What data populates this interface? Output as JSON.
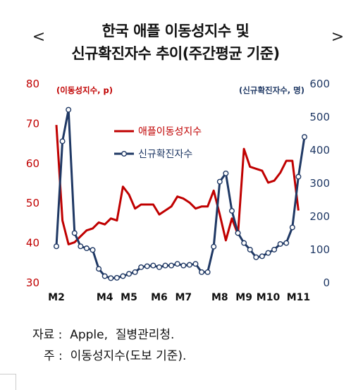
{
  "header": {
    "title_line1": "한국 애플 이동성지수 및",
    "title_line2": "신규확진자수 추이(주간평균 기준)",
    "prev_label": "<",
    "next_label": ">"
  },
  "footer": {
    "source": "자료 :  Apple,  질병관리청.",
    "note": "주 :  이동성지수(도보 기준)."
  },
  "colors": {
    "mobility": "#c00000",
    "cases": "#1f3864",
    "left_axis_text": "#c00000",
    "right_axis_text": "#1f3864"
  },
  "chart_data": {
    "type": "line",
    "left_axis_label": "(이동성지수, p)",
    "right_axis_label": "(신규확진자수, 명)",
    "ylim_left": [
      30,
      80
    ],
    "ylim_right": [
      0,
      600
    ],
    "left_ticks": [
      "30",
      "40",
      "50",
      "60",
      "70",
      "80"
    ],
    "right_ticks": [
      "0",
      "100",
      "200",
      "300",
      "400",
      "500",
      "600"
    ],
    "x_ticks": [
      "M2",
      "M4",
      "M5",
      "M6",
      "M7",
      "M8",
      "M9",
      "M10",
      "M11"
    ],
    "x_tick_positions": [
      0,
      8,
      12,
      17,
      21,
      27,
      31,
      35,
      40
    ],
    "legend_position": "upper-center",
    "series": [
      {
        "name": "애플이동성지수",
        "axis": "left",
        "marker": "none",
        "values": [
          69.5,
          45.5,
          39.5,
          40,
          41.5,
          43,
          43.5,
          45,
          44.5,
          46,
          45.5,
          54,
          52,
          48.5,
          49.5,
          49.5,
          49.5,
          47,
          48,
          49,
          51.5,
          51,
          50,
          48.5,
          49,
          49,
          53,
          47,
          40.5,
          46,
          42,
          63.5,
          59,
          58.5,
          58,
          55,
          55.5,
          57.5,
          60.5,
          60.5,
          48
        ]
      },
      {
        "name": "신규확진자수",
        "axis": "right",
        "marker": "circle",
        "values": [
          108,
          425,
          520,
          148,
          108,
          102,
          97,
          40,
          18,
          12,
          13,
          18,
          25,
          30,
          45,
          48,
          50,
          45,
          50,
          50,
          55,
          50,
          52,
          55,
          30,
          30,
          107,
          303,
          328,
          215,
          148,
          118,
          98,
          75,
          78,
          88,
          98,
          115,
          118,
          165,
          318,
          438
        ]
      }
    ]
  }
}
